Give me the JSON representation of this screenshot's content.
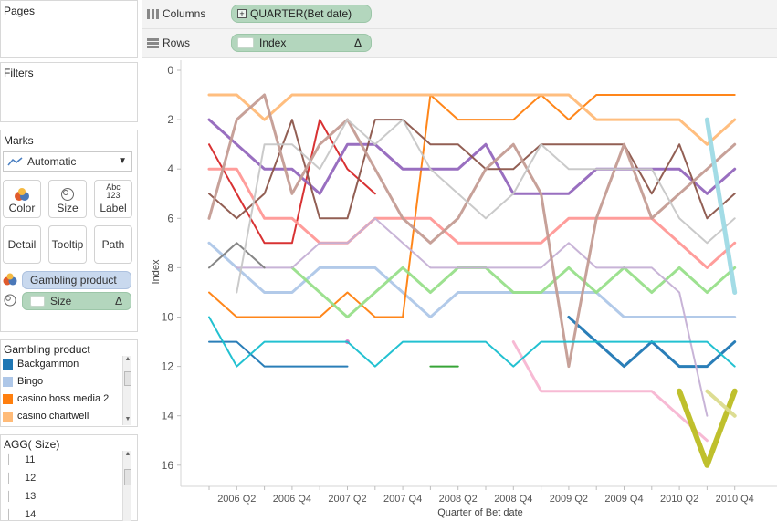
{
  "shelves": {
    "pages_label": "Pages",
    "columns_label": "Columns",
    "rows_label": "Rows",
    "columns_pill": "QUARTER(Bet date)",
    "rows_pill": "Index",
    "rows_pill_delta": "Δ"
  },
  "filters_label": "Filters",
  "marks": {
    "title": "Marks",
    "type": "Automatic",
    "buttons": {
      "color": "Color",
      "size": "Size",
      "label": "Label",
      "label_icon": "Abc\n123",
      "detail": "Detail",
      "tooltip": "Tooltip",
      "path": "Path"
    },
    "color_pill": "Gambling product",
    "size_pill": "Size",
    "size_pill_delta": "Δ"
  },
  "color_legend": {
    "title": "Gambling product",
    "items": [
      {
        "label": "Backgammon",
        "color": "#1f77b4"
      },
      {
        "label": "Bingo",
        "color": "#aec7e8"
      },
      {
        "label": "casino boss media 2",
        "color": "#ff7f0e"
      },
      {
        "label": "casino chartwell",
        "color": "#ffbb78"
      }
    ]
  },
  "size_legend": {
    "title": "AGG(      Size)",
    "items": [
      "11",
      "12",
      "13",
      "14"
    ]
  },
  "chart_data": {
    "type": "line",
    "xlabel": "Quarter of Bet date",
    "ylabel": "Index",
    "x": [
      "2006 Q1",
      "2006 Q2",
      "2006 Q3",
      "2006 Q4",
      "2007 Q1",
      "2007 Q2",
      "2007 Q3",
      "2007 Q4",
      "2008 Q1",
      "2008 Q2",
      "2008 Q3",
      "2008 Q4",
      "2009 Q1",
      "2009 Q2",
      "2009 Q3",
      "2009 Q4",
      "2010 Q1",
      "2010 Q2",
      "2010 Q3",
      "2010 Q4"
    ],
    "x_tick_labels": [
      "2006 Q2",
      "2006 Q4",
      "2007 Q2",
      "2007 Q4",
      "2008 Q2",
      "2008 Q4",
      "2009 Q2",
      "2009 Q4",
      "2010 Q2",
      "2010 Q4"
    ],
    "y_ticks": [
      0,
      2,
      4,
      6,
      8,
      10,
      12,
      14,
      16
    ],
    "ylim": [
      0,
      16.5
    ],
    "y_reversed": true,
    "grid": false,
    "series": [
      {
        "color": "#1f77b4",
        "width": 2,
        "values": [
          11,
          11,
          12,
          12,
          12,
          12,
          null,
          null,
          null,
          null,
          null,
          null,
          null,
          null,
          null,
          null,
          null,
          null,
          null,
          null
        ]
      },
      {
        "color": "#1f77b4",
        "width": 3,
        "values": [
          null,
          null,
          null,
          null,
          null,
          null,
          null,
          null,
          null,
          null,
          null,
          null,
          null,
          10,
          11,
          12,
          11,
          12,
          12,
          11
        ]
      },
      {
        "color": "#aec7e8",
        "width": 3,
        "values": [
          7,
          8,
          9,
          9,
          8,
          8,
          8,
          9,
          10,
          9,
          9,
          9,
          9,
          9,
          9,
          10,
          10,
          10,
          10,
          10
        ]
      },
      {
        "color": "#ff7f0e",
        "width": 2,
        "values": [
          9,
          10,
          10,
          10,
          10,
          9,
          10,
          10,
          1,
          2,
          2,
          2,
          1,
          2,
          1,
          1,
          1,
          1,
          1,
          1
        ]
      },
      {
        "color": "#ffbb78",
        "width": 3,
        "values": [
          1,
          1,
          2,
          1,
          1,
          1,
          1,
          1,
          1,
          1,
          1,
          1,
          1,
          1,
          2,
          2,
          2,
          2,
          3,
          2
        ]
      },
      {
        "color": "#2ca02c",
        "width": 2,
        "values": [
          null,
          null,
          null,
          null,
          null,
          null,
          null,
          null,
          12,
          12,
          null,
          null,
          null,
          null,
          null,
          null,
          null,
          null,
          null,
          null
        ]
      },
      {
        "color": "#98df8a",
        "width": 3,
        "values": [
          null,
          null,
          null,
          8,
          9,
          10,
          9,
          8,
          9,
          8,
          8,
          9,
          9,
          8,
          9,
          8,
          9,
          8,
          9,
          8
        ]
      },
      {
        "color": "#d62728",
        "width": 2,
        "values": [
          3,
          5,
          7,
          7,
          2,
          4,
          5,
          null,
          null,
          null,
          null,
          null,
          null,
          null,
          null,
          null,
          null,
          null,
          null,
          null
        ]
      },
      {
        "color": "#ff9896",
        "width": 3,
        "values": [
          4,
          4,
          6,
          6,
          7,
          7,
          6,
          6,
          6,
          7,
          7,
          7,
          7,
          6,
          6,
          6,
          6,
          7,
          8,
          7
        ]
      },
      {
        "color": "#9467bd",
        "width": 3,
        "values": [
          2,
          3,
          4,
          4,
          5,
          3,
          3,
          4,
          4,
          4,
          3,
          5,
          5,
          5,
          4,
          4,
          4,
          4,
          5,
          4
        ]
      },
      {
        "color": "#c5b0d5",
        "width": 2,
        "values": [
          null,
          8,
          8,
          8,
          7,
          7,
          6,
          7,
          8,
          8,
          8,
          8,
          8,
          7,
          8,
          8,
          8,
          9,
          14,
          null
        ]
      },
      {
        "color": "#8c564b",
        "width": 2,
        "values": [
          5,
          6,
          5,
          2,
          6,
          6,
          2,
          2,
          3,
          3,
          4,
          4,
          3,
          3,
          3,
          3,
          5,
          3,
          6,
          5
        ]
      },
      {
        "color": "#c49c94",
        "width": 3,
        "values": [
          6,
          2,
          1,
          5,
          3,
          2,
          4,
          6,
          7,
          6,
          4,
          3,
          5,
          12,
          6,
          3,
          6,
          5,
          4,
          3
        ]
      },
      {
        "color": "#e377c2",
        "width": 1,
        "values": [
          null,
          null,
          null,
          null,
          null,
          11,
          null,
          null,
          null,
          null,
          null,
          null,
          null,
          null,
          null,
          null,
          null,
          null,
          null,
          null
        ]
      },
      {
        "color": "#f7b6d2",
        "width": 3,
        "values": [
          null,
          null,
          null,
          null,
          null,
          null,
          null,
          null,
          null,
          null,
          null,
          11,
          13,
          13,
          13,
          13,
          13,
          14,
          15,
          null
        ]
      },
      {
        "color": "#7f7f7f",
        "width": 2,
        "values": [
          8,
          7,
          8,
          null,
          null,
          null,
          null,
          null,
          null,
          null,
          null,
          null,
          null,
          null,
          null,
          null,
          null,
          null,
          null,
          null
        ]
      },
      {
        "color": "#c7c7c7",
        "width": 2,
        "values": [
          null,
          9,
          3,
          3,
          4,
          2,
          3,
          2,
          4,
          5,
          6,
          5,
          3,
          4,
          4,
          4,
          4,
          6,
          7,
          6
        ]
      },
      {
        "color": "#bcbd22",
        "width": 6,
        "values": [
          null,
          null,
          null,
          null,
          null,
          null,
          null,
          null,
          null,
          null,
          null,
          null,
          null,
          null,
          null,
          null,
          null,
          13,
          16,
          13
        ]
      },
      {
        "color": "#dbdb8d",
        "width": 4,
        "values": [
          null,
          null,
          null,
          null,
          null,
          null,
          null,
          null,
          null,
          null,
          null,
          null,
          null,
          null,
          null,
          null,
          null,
          null,
          13,
          14
        ]
      },
      {
        "color": "#17becf",
        "width": 2,
        "values": [
          10,
          12,
          11,
          11,
          11,
          11,
          12,
          11,
          11,
          11,
          11,
          12,
          11,
          11,
          11,
          11,
          11,
          11,
          11,
          12
        ]
      },
      {
        "color": "#9edae5",
        "width": 5,
        "values": [
          null,
          null,
          null,
          null,
          null,
          null,
          null,
          null,
          null,
          null,
          null,
          null,
          null,
          null,
          null,
          null,
          null,
          null,
          2,
          9
        ]
      }
    ]
  }
}
